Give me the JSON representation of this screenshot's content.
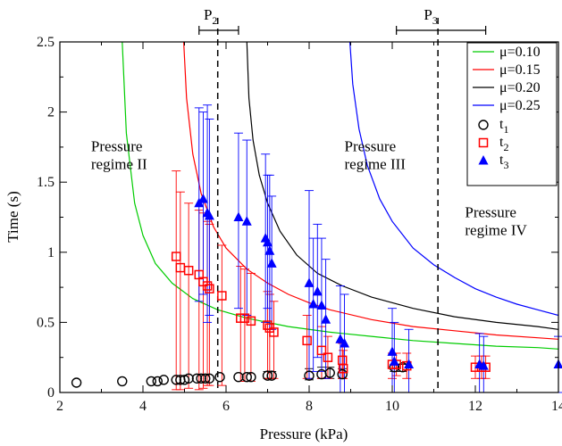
{
  "chart_data": {
    "type": "scatter",
    "xlabel": "Pressure (kPa)",
    "ylabel": "Time (s)",
    "xlim": [
      2,
      14
    ],
    "ylim": [
      0,
      2.5
    ],
    "xticks": [
      2,
      4,
      6,
      8,
      10,
      12,
      14
    ],
    "yticks": [
      0,
      0.5,
      1,
      1.5,
      2,
      2.5
    ],
    "xtick_labels": [
      "2",
      "4",
      "6",
      "8",
      "10",
      "12",
      "14"
    ],
    "ytick_labels": [
      "0",
      "0.5",
      "1",
      "1.5",
      "2",
      "2.5"
    ],
    "grid": false,
    "legend": "top-right",
    "curves": [
      {
        "label": "μ=0.10",
        "color": "#00cc00",
        "asymptote": 3.4,
        "x": [
          3.5,
          3.6,
          3.8,
          4.0,
          4.3,
          4.7,
          5.2,
          5.8,
          6.5,
          7.5,
          8.5,
          9.5,
          10.5,
          11.5,
          12.5,
          13.5,
          14.0
        ],
        "y": [
          2.5,
          1.85,
          1.35,
          1.12,
          0.92,
          0.78,
          0.67,
          0.59,
          0.53,
          0.47,
          0.43,
          0.4,
          0.37,
          0.35,
          0.33,
          0.32,
          0.31
        ]
      },
      {
        "label": "μ=0.15",
        "color": "#ff0000",
        "asymptote": 4.8,
        "x": [
          4.98,
          5.05,
          5.2,
          5.4,
          5.7,
          6.0,
          6.5,
          7.0,
          7.5,
          8.0,
          8.5,
          9.5,
          10.5,
          11.5,
          12.5,
          13.5,
          14.0
        ],
        "y": [
          2.5,
          2.1,
          1.7,
          1.42,
          1.18,
          1.03,
          0.88,
          0.78,
          0.7,
          0.64,
          0.59,
          0.52,
          0.47,
          0.44,
          0.41,
          0.39,
          0.38
        ]
      },
      {
        "label": "μ=0.20",
        "color": "#000000",
        "asymptote": 6.35,
        "x": [
          6.5,
          6.55,
          6.65,
          6.8,
          7.0,
          7.3,
          7.7,
          8.2,
          8.8,
          9.5,
          10.5,
          11.5,
          12.5,
          13.5,
          14.0
        ],
        "y": [
          2.5,
          2.1,
          1.8,
          1.55,
          1.35,
          1.15,
          0.98,
          0.85,
          0.76,
          0.68,
          0.6,
          0.54,
          0.5,
          0.47,
          0.45
        ]
      },
      {
        "label": "μ=0.25",
        "color": "#0000ff",
        "asymptote": 8.8,
        "x": [
          8.98,
          9.05,
          9.2,
          9.4,
          9.7,
          10.0,
          10.5,
          11.0,
          11.5,
          12.0,
          12.5,
          13.0,
          13.5,
          14.0
        ],
        "y": [
          2.5,
          2.2,
          1.88,
          1.62,
          1.38,
          1.22,
          1.03,
          0.91,
          0.82,
          0.74,
          0.68,
          0.63,
          0.59,
          0.55
        ]
      }
    ],
    "series": [
      {
        "label": "t",
        "sub": "1",
        "marker": "circle",
        "color": "#000000",
        "points": [
          {
            "x": 2.4,
            "y": 0.07,
            "lo": 0.07,
            "hi": 0.07
          },
          {
            "x": 3.5,
            "y": 0.08,
            "lo": 0.08,
            "hi": 0.08
          },
          {
            "x": 4.2,
            "y": 0.08,
            "lo": 0.08,
            "hi": 0.08
          },
          {
            "x": 4.35,
            "y": 0.08,
            "lo": 0.08,
            "hi": 0.08
          },
          {
            "x": 4.5,
            "y": 0.09,
            "lo": 0.09,
            "hi": 0.09
          },
          {
            "x": 4.8,
            "y": 0.09,
            "lo": 0.09,
            "hi": 0.09
          },
          {
            "x": 4.9,
            "y": 0.09,
            "lo": 0.09,
            "hi": 0.09
          },
          {
            "x": 5.0,
            "y": 0.09,
            "lo": 0.09,
            "hi": 0.09
          },
          {
            "x": 5.1,
            "y": 0.1,
            "lo": 0.1,
            "hi": 0.1
          },
          {
            "x": 5.3,
            "y": 0.1,
            "lo": 0.1,
            "hi": 0.1
          },
          {
            "x": 5.4,
            "y": 0.1,
            "lo": 0.1,
            "hi": 0.1
          },
          {
            "x": 5.5,
            "y": 0.1,
            "lo": 0.1,
            "hi": 0.1
          },
          {
            "x": 5.6,
            "y": 0.1,
            "lo": 0.1,
            "hi": 0.1
          },
          {
            "x": 5.85,
            "y": 0.11,
            "lo": 0.11,
            "hi": 0.11
          },
          {
            "x": 6.3,
            "y": 0.11,
            "lo": 0.11,
            "hi": 0.11
          },
          {
            "x": 6.5,
            "y": 0.11,
            "lo": 0.11,
            "hi": 0.11
          },
          {
            "x": 6.6,
            "y": 0.11,
            "lo": 0.11,
            "hi": 0.11
          },
          {
            "x": 7.0,
            "y": 0.12,
            "lo": 0.1,
            "hi": 0.15
          },
          {
            "x": 7.1,
            "y": 0.12,
            "lo": 0.1,
            "hi": 0.15
          },
          {
            "x": 8.0,
            "y": 0.12,
            "lo": 0.09,
            "hi": 0.17
          },
          {
            "x": 8.3,
            "y": 0.13,
            "lo": 0.1,
            "hi": 0.18
          },
          {
            "x": 8.5,
            "y": 0.14,
            "lo": 0.1,
            "hi": 0.18
          },
          {
            "x": 8.8,
            "y": 0.13,
            "lo": 0.1,
            "hi": 0.17
          },
          {
            "x": 10.05,
            "y": 0.18,
            "lo": 0.15,
            "hi": 0.2
          },
          {
            "x": 10.25,
            "y": 0.18,
            "lo": 0.15,
            "hi": 0.2
          }
        ]
      },
      {
        "label": "t",
        "sub": "2",
        "marker": "square",
        "color": "#ff0000",
        "points": [
          {
            "x": 4.8,
            "y": 0.97,
            "lo": 0.02,
            "hi": 1.58
          },
          {
            "x": 4.9,
            "y": 0.89,
            "lo": 0.02,
            "hi": 1.43
          },
          {
            "x": 5.1,
            "y": 0.87,
            "lo": 0.03,
            "hi": 1.35
          },
          {
            "x": 5.35,
            "y": 0.84,
            "lo": 0.02,
            "hi": 1.3
          },
          {
            "x": 5.45,
            "y": 0.79,
            "lo": 0.03,
            "hi": 1.28
          },
          {
            "x": 5.55,
            "y": 0.76,
            "lo": 0.05,
            "hi": 1.22
          },
          {
            "x": 5.6,
            "y": 0.74,
            "lo": 0.05,
            "hi": 1.2
          },
          {
            "x": 5.9,
            "y": 0.69,
            "lo": 0.05,
            "hi": 1.05
          },
          {
            "x": 6.35,
            "y": 0.53,
            "lo": 0.08,
            "hi": 0.9
          },
          {
            "x": 6.45,
            "y": 0.53,
            "lo": 0.08,
            "hi": 0.88
          },
          {
            "x": 6.6,
            "y": 0.51,
            "lo": 0.08,
            "hi": 0.85
          },
          {
            "x": 7.0,
            "y": 0.48,
            "lo": 0.1,
            "hi": 0.72
          },
          {
            "x": 7.05,
            "y": 0.46,
            "lo": 0.1,
            "hi": 0.7
          },
          {
            "x": 7.15,
            "y": 0.43,
            "lo": 0.1,
            "hi": 0.65
          },
          {
            "x": 7.95,
            "y": 0.37,
            "lo": 0.1,
            "hi": 0.55
          },
          {
            "x": 8.3,
            "y": 0.3,
            "lo": 0.1,
            "hi": 0.47
          },
          {
            "x": 8.45,
            "y": 0.25,
            "lo": 0.1,
            "hi": 0.4
          },
          {
            "x": 8.8,
            "y": 0.23,
            "lo": 0.1,
            "hi": 0.35
          },
          {
            "x": 8.82,
            "y": 0.17,
            "lo": 0.1,
            "hi": 0.3
          },
          {
            "x": 10.0,
            "y": 0.2,
            "lo": 0.1,
            "hi": 0.28
          },
          {
            "x": 10.1,
            "y": 0.2,
            "lo": 0.12,
            "hi": 0.28
          },
          {
            "x": 10.35,
            "y": 0.19,
            "lo": 0.1,
            "hi": 0.28
          },
          {
            "x": 12.0,
            "y": 0.18,
            "lo": 0.1,
            "hi": 0.26
          },
          {
            "x": 12.15,
            "y": 0.18,
            "lo": 0.1,
            "hi": 0.26
          },
          {
            "x": 12.25,
            "y": 0.18,
            "lo": 0.1,
            "hi": 0.26
          }
        ]
      },
      {
        "label": "t",
        "sub": "3",
        "marker": "triangle",
        "color": "#0000ff",
        "points": [
          {
            "x": 5.35,
            "y": 1.35,
            "lo": 0.65,
            "hi": 2.03
          },
          {
            "x": 5.45,
            "y": 1.38,
            "lo": 0.7,
            "hi": 2.0
          },
          {
            "x": 5.55,
            "y": 1.28,
            "lo": 0.5,
            "hi": 2.05
          },
          {
            "x": 5.6,
            "y": 1.26,
            "lo": 0.55,
            "hi": 1.95
          },
          {
            "x": 6.3,
            "y": 1.25,
            "lo": 0.6,
            "hi": 1.85
          },
          {
            "x": 6.5,
            "y": 1.22,
            "lo": 0.55,
            "hi": 1.8
          },
          {
            "x": 6.95,
            "y": 1.1,
            "lo": 0.5,
            "hi": 1.7
          },
          {
            "x": 7.0,
            "y": 1.07,
            "lo": 0.6,
            "hi": 1.55
          },
          {
            "x": 7.05,
            "y": 1.01,
            "lo": 0.45,
            "hi": 1.55
          },
          {
            "x": 7.1,
            "y": 0.92,
            "lo": 0.45,
            "hi": 1.4
          },
          {
            "x": 8.0,
            "y": 0.78,
            "lo": 0.1,
            "hi": 1.44
          },
          {
            "x": 8.1,
            "y": 0.63,
            "lo": 0.15,
            "hi": 1.1
          },
          {
            "x": 8.2,
            "y": 0.72,
            "lo": 0.25,
            "hi": 1.2
          },
          {
            "x": 8.3,
            "y": 0.62,
            "lo": 0.15,
            "hi": 1.1
          },
          {
            "x": 8.4,
            "y": 0.52,
            "lo": 0.1,
            "hi": 0.95
          },
          {
            "x": 8.75,
            "y": 0.38,
            "lo": 0.0,
            "hi": 0.76
          },
          {
            "x": 8.85,
            "y": 0.35,
            "lo": 0.0,
            "hi": 0.7
          },
          {
            "x": 10.0,
            "y": 0.29,
            "lo": 0.0,
            "hi": 0.6
          },
          {
            "x": 10.05,
            "y": 0.22,
            "lo": 0.0,
            "hi": 0.5
          },
          {
            "x": 10.4,
            "y": 0.2,
            "lo": 0.0,
            "hi": 0.45
          },
          {
            "x": 12.1,
            "y": 0.2,
            "lo": 0.0,
            "hi": 0.42
          },
          {
            "x": 12.2,
            "y": 0.19,
            "lo": 0.0,
            "hi": 0.4
          },
          {
            "x": 14.0,
            "y": 0.2,
            "lo": 0.0,
            "hi": 0.4
          }
        ]
      }
    ],
    "vlines": [
      {
        "label": "P",
        "sub": "2",
        "x": 5.8,
        "range": [
          5.35,
          6.3
        ]
      },
      {
        "label": "P",
        "sub": "3",
        "x": 11.1,
        "range": [
          10.1,
          12.25
        ]
      }
    ],
    "annotations": [
      {
        "lines": [
          "Pressure",
          "regime II"
        ],
        "x": 2.75,
        "y": 1.72
      },
      {
        "lines": [
          "Pressure",
          "regime III"
        ],
        "x": 8.85,
        "y": 1.72
      },
      {
        "lines": [
          "Pressure",
          "regime IV"
        ],
        "x": 11.75,
        "y": 1.25
      }
    ]
  }
}
